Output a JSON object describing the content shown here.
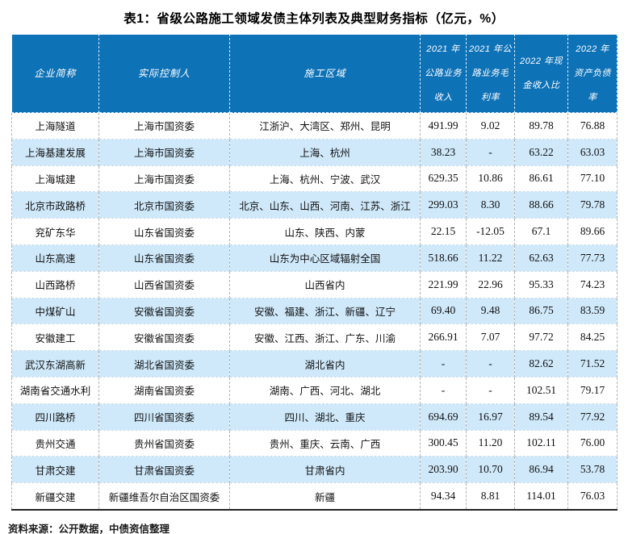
{
  "title": "表1：省级公路施工领域发债主体列表及典型财务指标（亿元，%）",
  "source_note": "资料来源：公开数据，中债资信整理",
  "colors": {
    "header_bg": "#0e72b7",
    "header_text": "#ffffff",
    "row_alt_bg": "#cfe9fa",
    "body_text": "#111111",
    "bottom_border": "#222222"
  },
  "table": {
    "columns": [
      {
        "id": "company",
        "label": "企业简称",
        "numeric": false
      },
      {
        "id": "controller",
        "label": "实际控制人",
        "numeric": false
      },
      {
        "id": "region",
        "label": "施工区域",
        "numeric": false
      },
      {
        "id": "revenue_2021",
        "label": "2021 年\n公路业务\n收入",
        "numeric": true
      },
      {
        "id": "gross_margin_2021",
        "label": "2021 年公\n路业务毛\n利率",
        "numeric": true
      },
      {
        "id": "cash_income_ratio_2022",
        "label": "2022 年现\n金收入比",
        "numeric": true
      },
      {
        "id": "debt_ratio_2022",
        "label": "2022 年\n资产负债\n率",
        "numeric": true
      }
    ],
    "rows": [
      [
        "上海隧道",
        "上海市国资委",
        "江浙沪、大湾区、郑州、昆明",
        "491.99",
        "9.02",
        "89.78",
        "76.88"
      ],
      [
        "上海基建发展",
        "上海市国资委",
        "上海、杭州",
        "38.23",
        "-",
        "63.22",
        "63.03"
      ],
      [
        "上海城建",
        "上海市国资委",
        "上海、杭州、宁波、武汉",
        "629.35",
        "10.86",
        "86.61",
        "77.10"
      ],
      [
        "北京市政路桥",
        "北京市国资委",
        "北京、山东、山西、河南、江苏、浙江",
        "299.03",
        "8.30",
        "88.66",
        "79.78"
      ],
      [
        "兖矿东华",
        "山东省国资委",
        "山东、陕西、内蒙",
        "22.15",
        "-12.05",
        "67.1",
        "89.66"
      ],
      [
        "山东高速",
        "山东省国资委",
        "山东为中心区域辐射全国",
        "518.66",
        "11.22",
        "62.63",
        "77.73"
      ],
      [
        "山西路桥",
        "山西省国资委",
        "山西省内",
        "221.99",
        "22.96",
        "95.33",
        "74.23"
      ],
      [
        "中煤矿山",
        "安徽省国资委",
        "安徽、福建、浙江、新疆、辽宁",
        "69.40",
        "9.48",
        "86.75",
        "83.59"
      ],
      [
        "安徽建工",
        "安徽省国资委",
        "安徽、江西、浙江、广东、川渝",
        "266.91",
        "7.07",
        "97.72",
        "84.25"
      ],
      [
        "武汉东湖高新",
        "湖北省国资委",
        "湖北省内",
        "-",
        "-",
        "82.62",
        "71.52"
      ],
      [
        "湖南省交通水利",
        "湖南省国资委",
        "湖南、广西、河北、湖北",
        "-",
        "-",
        "102.51",
        "79.17"
      ],
      [
        "四川路桥",
        "四川省国资委",
        "四川、湖北、重庆",
        "694.69",
        "16.97",
        "89.54",
        "77.92"
      ],
      [
        "贵州交通",
        "贵州省国资委",
        "贵州、重庆、云南、广西",
        "300.45",
        "11.20",
        "102.11",
        "76.00"
      ],
      [
        "甘肃交建",
        "甘肃省国资委",
        "甘肃省内",
        "203.90",
        "10.70",
        "86.94",
        "53.78"
      ],
      [
        "新疆交建",
        "新疆维吾尔自治区国资委",
        "新疆",
        "94.34",
        "8.81",
        "114.01",
        "76.03"
      ]
    ]
  }
}
